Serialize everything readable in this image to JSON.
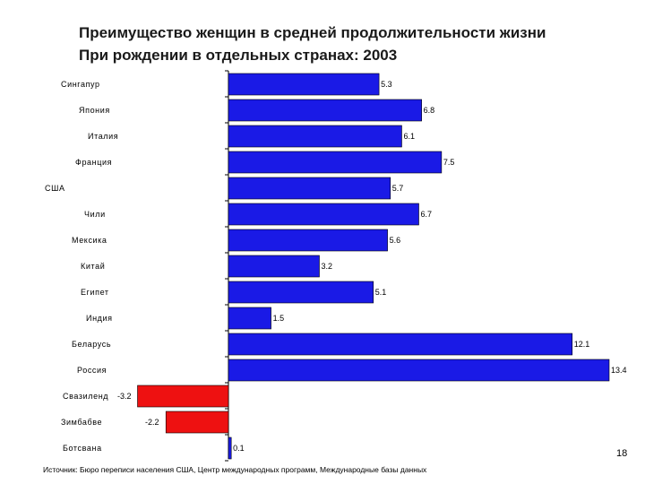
{
  "chart_data": {
    "type": "bar",
    "orientation": "horizontal",
    "title": "Преимущество женщин в средней продолжительности жизни",
    "subtitle": "При рождении в отдельных странах: 2003",
    "categories": [
      "Сингапур",
      "Япония",
      "Италия",
      "Франция",
      "США",
      "Чили",
      "Мексика",
      "Китай",
      "Египет",
      "Индия",
      "Беларусь",
      "Россия",
      "Свазиленд",
      "Зимбабве",
      "Ботсвана"
    ],
    "values": [
      5.3,
      6.8,
      6.1,
      7.5,
      5.7,
      6.7,
      5.6,
      3.2,
      5.1,
      1.5,
      12.1,
      13.4,
      -3.2,
      -2.2,
      0.1
    ],
    "value_labels": [
      "5.3",
      "6.8",
      "6.1",
      "7.5",
      "5.7",
      "6.7",
      "5.6",
      "3.2",
      "5.1",
      "1.5",
      "12.1",
      "13.4",
      "-3.2",
      "-2.2",
      "0.1"
    ],
    "xlim": [
      -3.2,
      13.4
    ],
    "grid": false,
    "legend": "none",
    "colors": {
      "positive": "#1a1ae6",
      "negative": "#ee1111",
      "bar_stroke": "#000000"
    }
  },
  "footer": {
    "source": "Источник: Бюро переписи населения США, Центр международных программ, Международные базы данных"
  },
  "page_number": "18"
}
